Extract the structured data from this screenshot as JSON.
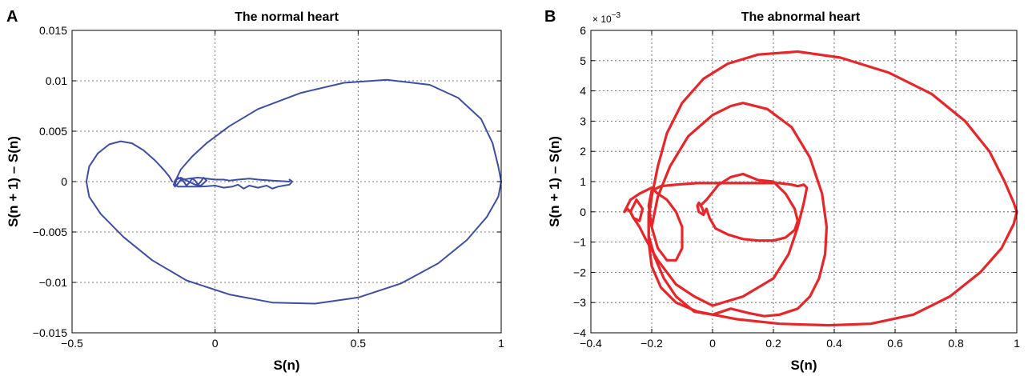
{
  "chart_data": [
    {
      "panel": "A",
      "type": "line",
      "title": "The normal heart",
      "xlabel": "S(n)",
      "ylabel": "S(n + 1) – S(n)",
      "xlim": [
        -0.5,
        1
      ],
      "ylim": [
        -0.015,
        0.015
      ],
      "xticks": [
        -0.5,
        0,
        0.5,
        1
      ],
      "xtick_labels": [
        "−0.5",
        "0",
        "0.5",
        "1"
      ],
      "yticks": [
        -0.015,
        -0.01,
        -0.005,
        0,
        0.005,
        0.01,
        0.015
      ],
      "ytick_labels": [
        "−0.015",
        "−0.01",
        "−0.005",
        "0",
        "0.005",
        "0.01",
        "0.015"
      ],
      "grid": true,
      "color": "#3c4ea8",
      "series": [
        {
          "x": [
            0.26,
            0.2,
            0.15,
            0.12,
            0.08,
            0.05,
            0.03,
            0.0,
            -0.03,
            -0.06,
            -0.09,
            -0.11,
            -0.13,
            -0.14,
            -0.145,
            -0.14,
            -0.13,
            -0.12,
            -0.11,
            -0.1,
            -0.09,
            -0.08,
            -0.07,
            -0.06,
            -0.05,
            -0.04,
            -0.03,
            -0.05,
            -0.07,
            -0.1,
            -0.12,
            -0.135,
            -0.14,
            -0.13,
            -0.1,
            -0.05,
            0.0,
            0.03,
            0.06,
            0.08,
            0.1,
            0.12,
            0.15,
            0.18,
            0.2,
            0.22,
            0.24,
            0.26,
            0.27,
            0.26
          ],
          "y": [
            0.0,
            0.0001,
            0.0002,
            0.0003,
            0.0002,
            0.0001,
            0.0002,
            0.0002,
            0.0003,
            0.0004,
            0.0003,
            0.0002,
            0.0004,
            0.0001,
            -0.0003,
            -0.0005,
            -0.0002,
            0.0002,
            0.0,
            -0.0004,
            -0.0001,
            0.0003,
            0.0001,
            -0.0003,
            0.0,
            0.0004,
            0.0001,
            -0.0004,
            -0.0003,
            0.0001,
            0.0004,
            0.0002,
            -0.0003,
            -0.0005,
            -0.0005,
            -0.0005,
            -0.0004,
            -0.0006,
            -0.0005,
            -0.0003,
            -0.0007,
            -0.0004,
            -0.0006,
            -0.0004,
            -0.0007,
            -0.0005,
            -0.0004,
            -0.0003,
            0.0,
            0.0002
          ]
        },
        {
          "x": [
            -0.14,
            -0.12,
            -0.08,
            -0.03,
            0.05,
            0.15,
            0.3,
            0.45,
            0.6,
            0.75,
            0.85,
            0.93,
            0.97,
            0.99,
            1.0,
            0.99,
            0.95,
            0.88,
            0.78,
            0.65,
            0.5,
            0.35,
            0.2,
            0.05,
            -0.1,
            -0.22,
            -0.32,
            -0.4,
            -0.44,
            -0.45,
            -0.44,
            -0.41,
            -0.37,
            -0.33,
            -0.29,
            -0.25,
            -0.21,
            -0.18,
            -0.16,
            -0.15
          ],
          "y": [
            0.0,
            0.0012,
            0.0025,
            0.0038,
            0.0055,
            0.0072,
            0.0088,
            0.0098,
            0.0101,
            0.0096,
            0.0083,
            0.0062,
            0.0038,
            0.0015,
            0.0,
            -0.0015,
            -0.0035,
            -0.0058,
            -0.0081,
            -0.0101,
            -0.0115,
            -0.0121,
            -0.012,
            -0.0112,
            -0.0098,
            -0.0078,
            -0.0055,
            -0.0032,
            -0.0015,
            0.0,
            0.0015,
            0.0028,
            0.0037,
            0.004,
            0.0038,
            0.0031,
            0.0021,
            0.0012,
            0.0005,
            0.0
          ]
        }
      ]
    },
    {
      "panel": "B",
      "type": "line",
      "title": "The abnormal heart",
      "xlabel": "S(n)",
      "ylabel": "S(n + 1) – S(n)",
      "y_multiplier": "× 10",
      "y_multiplier_exp": "−3",
      "xlim": [
        -0.4,
        1
      ],
      "ylim": [
        -4,
        6
      ],
      "xticks": [
        -0.4,
        -0.2,
        0,
        0.2,
        0.4,
        0.6,
        0.8,
        1
      ],
      "xtick_labels": [
        "−0.4",
        "−0.2",
        "0",
        "0.2",
        "0.4",
        "0.6",
        "0.8",
        "1"
      ],
      "yticks": [
        -4,
        -3,
        -2,
        -1,
        0,
        1,
        2,
        3,
        4,
        5,
        6
      ],
      "ytick_labels": [
        "−4",
        "−3",
        "−2",
        "−1",
        "0",
        "1",
        "2",
        "3",
        "4",
        "5",
        "6"
      ],
      "grid": true,
      "color": "#e8262a",
      "series": [
        {
          "x": [
            -0.2,
            -0.18,
            -0.15,
            -0.1,
            -0.03,
            0.05,
            0.15,
            0.28,
            0.42,
            0.58,
            0.72,
            0.83,
            0.91,
            0.96,
            0.99,
            1.0,
            0.99,
            0.95,
            0.88,
            0.78,
            0.66,
            0.52,
            0.38,
            0.22,
            0.08,
            -0.05,
            -0.12,
            -0.17,
            -0.2,
            -0.21,
            -0.21,
            -0.2
          ],
          "y": [
            0.5,
            1.5,
            2.6,
            3.6,
            4.4,
            4.9,
            5.2,
            5.3,
            5.1,
            4.6,
            3.9,
            3.0,
            2.0,
            1.0,
            0.3,
            0.0,
            -0.4,
            -1.2,
            -2.0,
            -2.8,
            -3.4,
            -3.7,
            -3.75,
            -3.7,
            -3.55,
            -3.3,
            -3.0,
            -2.5,
            -1.8,
            -1.0,
            -0.2,
            0.5
          ]
        },
        {
          "x": [
            -0.2,
            -0.18,
            -0.14,
            -0.08,
            0.0,
            0.06,
            0.1,
            0.18,
            0.26,
            0.32,
            0.36,
            0.375,
            0.37,
            0.35,
            0.32,
            0.28,
            0.22,
            0.17,
            0.12,
            0.06,
            0.0,
            -0.06,
            -0.12,
            -0.16,
            -0.19,
            -0.21,
            -0.21,
            -0.2
          ],
          "y": [
            -0.5,
            0.5,
            1.5,
            2.5,
            3.2,
            3.5,
            3.6,
            3.4,
            2.8,
            1.8,
            0.6,
            -0.5,
            -1.4,
            -2.2,
            -2.8,
            -3.2,
            -3.4,
            -3.45,
            -3.35,
            -3.2,
            -3.4,
            -3.3,
            -2.8,
            -2.2,
            -1.5,
            -0.8,
            0.0,
            -0.5
          ]
        },
        {
          "x": [
            -0.29,
            -0.27,
            -0.24,
            -0.22,
            -0.2,
            -0.18,
            -0.15,
            -0.12,
            -0.1,
            -0.1,
            -0.12,
            -0.15,
            -0.18,
            -0.2,
            -0.21,
            -0.2,
            -0.17,
            -0.12,
            -0.05,
            0.05,
            0.15,
            0.22,
            0.26,
            0.28,
            0.3,
            0.31,
            0.3,
            0.28,
            0.25,
            0.2,
            0.1,
            0.0,
            -0.06,
            -0.12,
            -0.18,
            -0.22,
            -0.24,
            -0.26,
            -0.27,
            -0.28,
            -0.29
          ],
          "y": [
            0.0,
            0.4,
            0.6,
            0.7,
            0.8,
            0.6,
            0.4,
            0.0,
            -0.5,
            -1.2,
            -1.6,
            -1.6,
            -1.2,
            -0.5,
            0.2,
            0.7,
            0.85,
            0.9,
            0.95,
            0.95,
            0.95,
            0.95,
            0.9,
            0.85,
            0.9,
            0.8,
            0.3,
            -0.5,
            -1.4,
            -2.2,
            -2.8,
            -3.1,
            -2.8,
            -2.4,
            -1.6,
            -0.9,
            -0.5,
            -0.2,
            0.0,
            0.1,
            0.0
          ]
        },
        {
          "x": [
            -0.27,
            -0.25,
            -0.23,
            -0.24,
            -0.26,
            -0.27
          ],
          "y": [
            0.0,
            0.4,
            0.1,
            -0.3,
            -0.2,
            0.0
          ]
        },
        {
          "x": [
            -0.04,
            -0.02,
            0.02,
            0.06,
            0.1,
            0.15,
            0.2,
            0.24,
            0.27,
            0.28,
            0.27,
            0.24,
            0.2,
            0.15,
            0.1,
            0.05,
            0.01,
            -0.01,
            -0.02,
            -0.03,
            -0.045,
            -0.05,
            -0.045,
            -0.035,
            -0.03
          ],
          "y": [
            0.2,
            0.4,
            0.9,
            1.15,
            1.25,
            1.05,
            1.0,
            0.6,
            0.1,
            -0.3,
            -0.6,
            -0.85,
            -0.95,
            -0.95,
            -0.9,
            -0.75,
            -0.55,
            -0.2,
            0.1,
            -0.1,
            0.0,
            0.2,
            0.3,
            0.15,
            0.0
          ]
        }
      ]
    }
  ]
}
